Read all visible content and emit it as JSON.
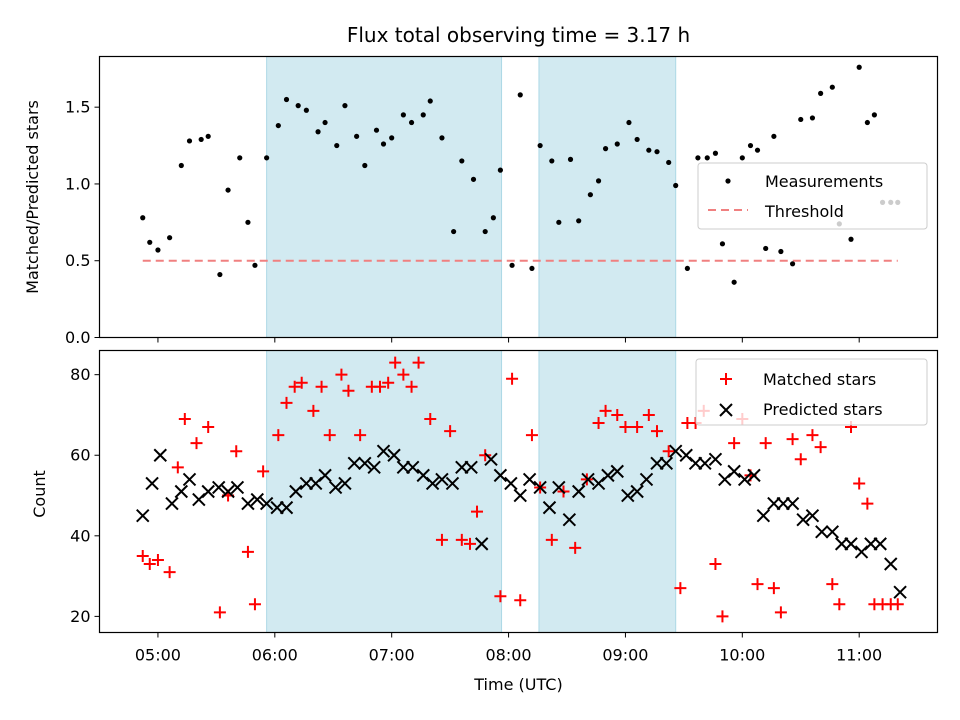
{
  "title": "Flux total observing time = 3.17 h",
  "x_axis": {
    "label": "Time (UTC)",
    "ticks": [
      "05:00",
      "06:00",
      "07:00",
      "08:00",
      "09:00",
      "10:00",
      "11:00"
    ],
    "tick_values_h": [
      5,
      6,
      7,
      8,
      9,
      10,
      11
    ],
    "range_h": [
      4.5,
      11.67
    ]
  },
  "colors": {
    "measurement": "#000000",
    "threshold": "#f08080",
    "matched": "#ff0000",
    "predicted": "#000000",
    "band": "#add8e6"
  },
  "chart_data": [
    {
      "type": "scatter",
      "panel": "top",
      "ylabel": "Matched/Predicted stars",
      "ylim": [
        0,
        1.83
      ],
      "yticks": [
        0.0,
        0.5,
        1.0,
        1.5
      ],
      "ytick_labels": [
        "0.0",
        "0.5",
        "1.0",
        "1.5"
      ],
      "legend": {
        "placement": "center-right",
        "entries": [
          "Measurements",
          "Threshold"
        ]
      },
      "shaded_intervals_h": [
        [
          5.93,
          7.94
        ],
        [
          8.26,
          9.43
        ]
      ],
      "threshold": {
        "name": "Threshold",
        "value": 0.5,
        "x_range_h": [
          4.87,
          11.33
        ]
      },
      "series": [
        {
          "name": "Measurements",
          "x": [
            4.87,
            4.93,
            5.0,
            5.1,
            5.2,
            5.27,
            5.37,
            5.43,
            5.53,
            5.6,
            5.7,
            5.77,
            5.83,
            5.93,
            6.03,
            6.1,
            6.2,
            6.27,
            6.37,
            6.43,
            6.53,
            6.6,
            6.7,
            6.77,
            6.87,
            6.93,
            7.0,
            7.1,
            7.17,
            7.27,
            7.33,
            7.43,
            7.53,
            7.6,
            7.7,
            7.8,
            7.87,
            7.93,
            8.03,
            8.1,
            8.2,
            8.27,
            8.37,
            8.43,
            8.53,
            8.6,
            8.7,
            8.77,
            8.83,
            8.93,
            9.03,
            9.1,
            9.2,
            9.27,
            9.37,
            9.43,
            9.53,
            9.62,
            9.7,
            9.77,
            9.83,
            9.93,
            10.0,
            10.07,
            10.13,
            10.2,
            10.27,
            10.33,
            10.43,
            10.5,
            10.6,
            10.67,
            10.77,
            10.83,
            10.93,
            11.0,
            11.07,
            11.13,
            11.2,
            11.27,
            11.33
          ],
          "y": [
            0.78,
            0.62,
            0.57,
            0.65,
            1.12,
            1.28,
            1.29,
            1.31,
            0.41,
            0.96,
            1.17,
            0.75,
            0.47,
            1.17,
            1.38,
            1.55,
            1.51,
            1.48,
            1.34,
            1.4,
            1.25,
            1.51,
            1.31,
            1.12,
            1.35,
            1.26,
            1.3,
            1.45,
            1.4,
            1.45,
            1.54,
            1.3,
            0.69,
            1.15,
            1.03,
            0.69,
            0.78,
            1.09,
            0.47,
            1.58,
            0.45,
            1.25,
            1.15,
            0.75,
            1.16,
            0.76,
            0.93,
            1.02,
            1.23,
            1.26,
            1.4,
            1.29,
            1.22,
            1.21,
            1.14,
            0.99,
            0.45,
            1.17,
            1.17,
            1.2,
            0.61,
            0.36,
            1.17,
            1.25,
            1.22,
            0.58,
            1.31,
            0.56,
            0.48,
            1.42,
            1.43,
            1.59,
            1.63,
            0.74,
            0.64,
            1.76,
            1.4,
            1.45,
            0.88,
            0.88,
            0.88
          ]
        }
      ]
    },
    {
      "type": "scatter",
      "panel": "bottom",
      "xlabel": "Time (UTC)",
      "ylabel": "Count",
      "ylim": [
        16,
        86
      ],
      "yticks": [
        20,
        40,
        60,
        80
      ],
      "ytick_labels": [
        "20",
        "40",
        "60",
        "80"
      ],
      "legend": {
        "placement": "top-right",
        "entries": [
          "Matched stars",
          "Predicted stars"
        ]
      },
      "shaded_intervals_h": [
        [
          5.93,
          7.94
        ],
        [
          8.26,
          9.43
        ]
      ],
      "series": [
        {
          "name": "Matched stars",
          "marker": "plus",
          "x": [
            4.87,
            4.93,
            5.0,
            5.1,
            5.17,
            5.23,
            5.33,
            5.43,
            5.53,
            5.6,
            5.67,
            5.77,
            5.83,
            5.9,
            6.03,
            6.1,
            6.17,
            6.23,
            6.33,
            6.4,
            6.47,
            6.57,
            6.63,
            6.73,
            6.83,
            6.9,
            6.97,
            7.03,
            7.1,
            7.17,
            7.23,
            7.33,
            7.43,
            7.5,
            7.6,
            7.67,
            7.73,
            7.8,
            7.93,
            8.03,
            8.1,
            8.2,
            8.27,
            8.37,
            8.47,
            8.57,
            8.67,
            8.77,
            8.83,
            8.93,
            9.0,
            9.1,
            9.2,
            9.27,
            9.37,
            9.47,
            9.53,
            9.6,
            9.67,
            9.77,
            9.83,
            9.93,
            10.0,
            10.07,
            10.13,
            10.2,
            10.27,
            10.33,
            10.43,
            10.5,
            10.6,
            10.67,
            10.77,
            10.83,
            10.93,
            11.0,
            11.07,
            11.13,
            11.2,
            11.27,
            11.33
          ],
          "y": [
            35,
            33,
            34,
            31,
            57,
            69,
            63,
            67,
            21,
            50,
            61,
            36,
            23,
            56,
            65,
            73,
            77,
            78,
            71,
            77,
            65,
            80,
            76,
            65,
            77,
            77,
            78,
            83,
            80,
            77,
            83,
            69,
            39,
            66,
            39,
            38,
            46,
            60,
            25,
            79,
            24,
            65,
            52,
            39,
            51,
            37,
            54,
            68,
            71,
            70,
            67,
            67,
            70,
            66,
            61,
            27,
            68,
            68,
            71,
            33,
            20,
            63,
            69,
            55,
            28,
            63,
            27,
            21,
            64,
            59,
            65,
            62,
            28,
            23,
            67,
            53,
            48,
            23,
            23,
            23,
            23
          ]
        },
        {
          "name": "Predicted stars",
          "marker": "x",
          "x": [
            4.87,
            4.95,
            5.02,
            5.12,
            5.2,
            5.27,
            5.35,
            5.43,
            5.52,
            5.6,
            5.68,
            5.77,
            5.85,
            5.93,
            6.02,
            6.1,
            6.18,
            6.27,
            6.35,
            6.43,
            6.52,
            6.6,
            6.68,
            6.77,
            6.85,
            6.93,
            7.02,
            7.1,
            7.18,
            7.27,
            7.35,
            7.43,
            7.52,
            7.6,
            7.68,
            7.77,
            7.85,
            7.93,
            8.02,
            8.1,
            8.18,
            8.27,
            8.35,
            8.43,
            8.52,
            8.6,
            8.68,
            8.77,
            8.85,
            8.93,
            9.02,
            9.1,
            9.18,
            9.27,
            9.35,
            9.43,
            9.52,
            9.6,
            9.68,
            9.77,
            9.85,
            9.93,
            10.02,
            10.1,
            10.18,
            10.27,
            10.35,
            10.43,
            10.52,
            10.6,
            10.68,
            10.77,
            10.85,
            10.93,
            11.02,
            11.1,
            11.18,
            11.27,
            11.35
          ],
          "y": [
            45,
            53,
            60,
            48,
            51,
            54,
            49,
            51,
            52,
            51,
            52,
            48,
            49,
            48,
            47,
            47,
            51,
            53,
            53,
            55,
            52,
            53,
            58,
            58,
            57,
            61,
            60,
            57,
            57,
            55,
            53,
            54,
            53,
            57,
            57,
            38,
            59,
            55,
            53,
            50,
            54,
            52,
            47,
            52,
            44,
            51,
            54,
            53,
            55,
            56,
            50,
            51,
            54,
            58,
            58,
            61,
            60,
            58,
            58,
            59,
            54,
            56,
            54,
            55,
            45,
            48,
            48,
            48,
            44,
            45,
            41,
            41,
            38,
            38,
            36,
            38,
            38,
            33,
            26
          ]
        }
      ]
    }
  ]
}
